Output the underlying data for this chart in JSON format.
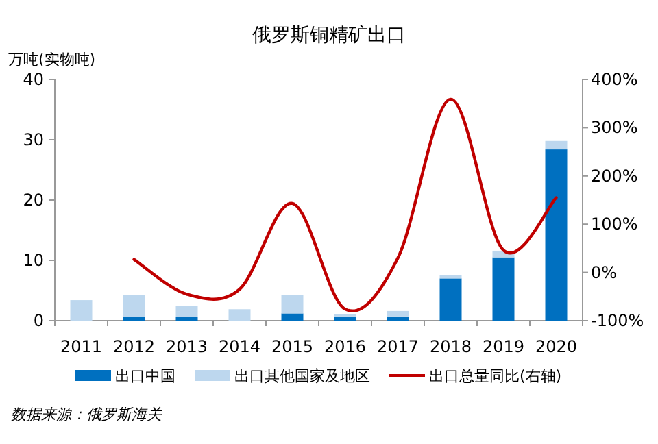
{
  "chart_data": {
    "type": "bar",
    "title": "俄罗斯铜精矿出口",
    "ylabel": "万吨(实物吨)",
    "stacked": true,
    "legend": "bottom",
    "grid": false,
    "categories": [
      "2011",
      "2012",
      "2013",
      "2014",
      "2015",
      "2016",
      "2017",
      "2018",
      "2019",
      "2020"
    ],
    "ylim": [
      0,
      40
    ],
    "yticks": [
      0,
      10,
      20,
      30,
      40
    ],
    "y2lim": [
      -100,
      400
    ],
    "y2ticks": [
      {
        "value": -100,
        "label": "-100%"
      },
      {
        "value": 0,
        "label": "0%"
      },
      {
        "value": 100,
        "label": "100%"
      },
      {
        "value": 200,
        "label": "200%"
      },
      {
        "value": 300,
        "label": "300%"
      },
      {
        "value": 400,
        "label": "400%"
      }
    ],
    "series": [
      {
        "name": "出口中国",
        "color": "#0070c0",
        "values": [
          0,
          0.6,
          0.6,
          0,
          1.2,
          0.7,
          0.7,
          7.0,
          10.5,
          28.4
        ]
      },
      {
        "name": "出口其他国家及地区",
        "color": "#bdd7ee",
        "values": [
          3.4,
          3.7,
          1.9,
          1.9,
          3.1,
          0.4,
          0.9,
          0.5,
          1.1,
          1.4
        ]
      },
      {
        "name": "出口总量同比(右轴)",
        "type": "line",
        "axis": "y2",
        "color": "#c00000",
        "values": [
          null,
          27,
          -45,
          -35,
          143,
          -76,
          30,
          359,
          46,
          155
        ]
      }
    ],
    "annotations": [
      "数据来源：俄罗斯海关"
    ]
  }
}
